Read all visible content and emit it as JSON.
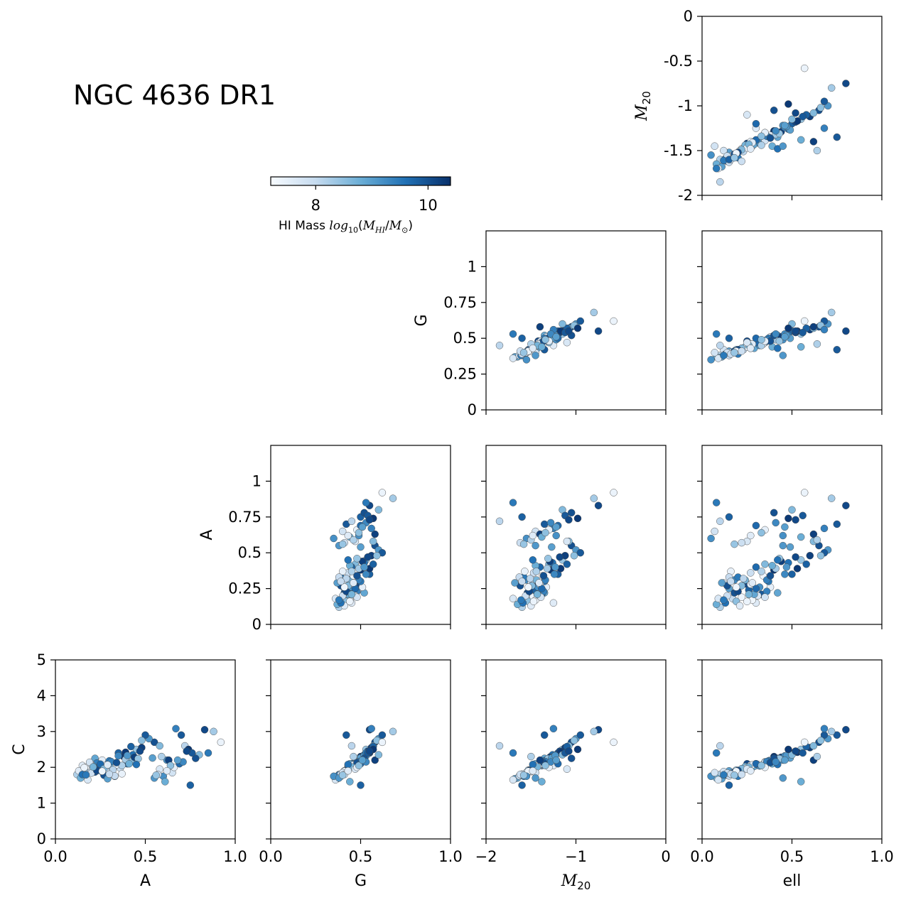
{
  "title": "NGC 4636 DR1",
  "colorbar": {
    "label": "HI Mass",
    "label_math": "log10(MHI/M⊙)",
    "ticks": [
      "8",
      "10"
    ],
    "tick_values": [
      8,
      10
    ],
    "range": [
      7.2,
      10.4
    ],
    "colors": [
      "#f7fbff",
      "#c6dbef",
      "#6baed6",
      "#2171b5",
      "#08306b"
    ]
  },
  "chart_data": {
    "type": "scatter",
    "variables": [
      "A",
      "G",
      "M20",
      "ell",
      "C"
    ],
    "axis_labels": {
      "A": "A",
      "G": "G",
      "M20": "M20",
      "ell": "ell",
      "C": "C"
    },
    "ranges": {
      "A": [
        0,
        1
      ],
      "G": [
        0,
        1
      ],
      "M20": [
        -2,
        0
      ],
      "ell": [
        0,
        1
      ],
      "C": [
        0,
        5
      ],
      "M20_row": [
        -2,
        0
      ],
      "G_row": [
        0,
        1.25
      ],
      "A_row": [
        0,
        1.25
      ]
    },
    "tick_labels": {
      "A_x": [
        "0.0",
        "0.5",
        "1.0"
      ],
      "G_x": [
        "0.0",
        "0.5",
        "1.0"
      ],
      "M20_x": [
        "−2",
        "−1",
        "0"
      ],
      "ell_x": [
        "0.0",
        "0.5",
        "1.0"
      ],
      "M20_y": [
        "0",
        "-0.5",
        "-1",
        "-1.5",
        "-2"
      ],
      "G_y": [
        "1",
        "0.75",
        "0.5",
        "0.25",
        "0"
      ],
      "A_y": [
        "1",
        "0.75",
        "0.5",
        "0.25",
        "0"
      ],
      "C_y": [
        "5",
        "4",
        "3",
        "2",
        "1",
        "0"
      ]
    },
    "panels": [
      {
        "x": "ell",
        "y": "M20"
      },
      {
        "x": "M20",
        "y": "G"
      },
      {
        "x": "ell",
        "y": "G"
      },
      {
        "x": "G",
        "y": "A"
      },
      {
        "x": "M20",
        "y": "A"
      },
      {
        "x": "ell",
        "y": "A"
      },
      {
        "x": "A",
        "y": "C"
      },
      {
        "x": "G",
        "y": "C"
      },
      {
        "x": "M20",
        "y": "C"
      },
      {
        "x": "ell",
        "y": "C"
      }
    ],
    "galaxies": [
      [
        0.15,
        0.45,
        -1.25,
        0.3,
        2.05,
        7.6
      ],
      [
        0.22,
        0.52,
        -1.35,
        0.42,
        2.25,
        8.9
      ],
      [
        0.31,
        0.4,
        -1.55,
        0.18,
        1.85,
        9.3
      ],
      [
        0.28,
        0.48,
        -1.42,
        0.25,
        2.1,
        10.1
      ],
      [
        0.12,
        0.38,
        -1.6,
        0.1,
        1.8,
        8.2
      ],
      [
        0.19,
        0.43,
        -1.48,
        0.22,
        1.95,
        7.4
      ],
      [
        0.35,
        0.55,
        -1.2,
        0.5,
        2.4,
        9.8
      ],
      [
        0.42,
        0.47,
        -1.3,
        0.35,
        2.15,
        8.6
      ],
      [
        0.25,
        0.41,
        -1.52,
        0.15,
        1.9,
        9.0
      ],
      [
        0.38,
        0.5,
        -1.28,
        0.4,
        2.3,
        10.3
      ],
      [
        0.17,
        0.44,
        -1.45,
        0.28,
        2.0,
        7.3
      ],
      [
        0.33,
        0.39,
        -1.58,
        0.2,
        1.75,
        9.5
      ],
      [
        0.45,
        0.53,
        -1.15,
        0.55,
        2.5,
        8.4
      ],
      [
        0.21,
        0.46,
        -1.38,
        0.33,
        2.05,
        9.9
      ],
      [
        0.29,
        0.42,
        -1.5,
        0.12,
        1.88,
        7.8
      ],
      [
        0.55,
        0.58,
        -1.05,
        0.65,
        2.7,
        10.0
      ],
      [
        0.62,
        0.49,
        -1.22,
        0.45,
        2.2,
        9.2
      ],
      [
        0.14,
        0.37,
        -1.65,
        0.08,
        1.7,
        8.8
      ],
      [
        0.26,
        0.51,
        -1.33,
        0.38,
        2.2,
        7.5
      ],
      [
        0.4,
        0.45,
        -1.4,
        0.3,
        2.1,
        9.7
      ],
      [
        0.18,
        0.4,
        -1.55,
        0.17,
        1.85,
        8.0
      ],
      [
        0.48,
        0.56,
        -1.12,
        0.6,
        2.55,
        10.2
      ],
      [
        0.36,
        0.43,
        -1.47,
        0.27,
        1.98,
        7.9
      ],
      [
        0.23,
        0.48,
        -1.36,
        0.36,
        2.12,
        9.4
      ],
      [
        0.31,
        0.44,
        -1.44,
        0.24,
        2.02,
        8.7
      ],
      [
        0.52,
        0.6,
        -1.0,
        0.7,
        2.8,
        9.1
      ],
      [
        0.27,
        0.39,
        -1.62,
        0.14,
        1.78,
        10.0
      ],
      [
        0.2,
        0.47,
        -1.41,
        0.31,
        2.08,
        7.7
      ],
      [
        0.43,
        0.52,
        -1.26,
        0.48,
        2.35,
        9.6
      ],
      [
        0.16,
        0.42,
        -1.53,
        0.19,
        1.92,
        8.5
      ],
      [
        0.34,
        0.46,
        -1.37,
        0.34,
        2.07,
        7.35
      ],
      [
        0.24,
        0.44,
        -1.46,
        0.26,
        2.0,
        9.8
      ],
      [
        0.39,
        0.49,
        -1.32,
        0.41,
        2.22,
        8.3
      ],
      [
        0.29,
        0.37,
        -1.68,
        0.11,
        1.68,
        9.0
      ],
      [
        0.13,
        0.41,
        -1.5,
        0.21,
        1.9,
        7.6
      ],
      [
        0.47,
        0.54,
        -1.18,
        0.52,
        2.45,
        10.1
      ],
      [
        0.21,
        0.43,
        -1.43,
        0.29,
        2.03,
        8.9
      ],
      [
        0.3,
        0.5,
        -1.35,
        0.37,
        2.18,
        9.5
      ],
      [
        0.37,
        0.4,
        -1.57,
        0.16,
        1.82,
        7.45
      ],
      [
        0.58,
        0.57,
        -1.08,
        0.62,
        2.6,
        8.6
      ],
      [
        0.26,
        0.45,
        -1.42,
        0.32,
        2.04,
        9.2
      ],
      [
        0.19,
        0.48,
        -1.39,
        0.35,
        2.14,
        7.8
      ],
      [
        0.44,
        0.51,
        -1.29,
        0.44,
        2.28,
        10.2
      ],
      [
        0.32,
        0.42,
        -1.51,
        0.23,
        1.93,
        8.1
      ],
      [
        0.15,
        0.39,
        -1.59,
        0.13,
        1.8,
        9.6
      ],
      [
        0.5,
        0.62,
        -0.95,
        0.68,
        2.9,
        9.9
      ],
      [
        0.28,
        0.46,
        -1.4,
        0.27,
        2.06,
        7.5
      ],
      [
        0.41,
        0.44,
        -1.45,
        0.39,
        2.1,
        8.8
      ],
      [
        0.22,
        0.41,
        -1.54,
        0.18,
        1.87,
        10.0
      ],
      [
        0.35,
        0.53,
        -1.24,
        0.46,
        2.32,
        9.3
      ],
      [
        0.18,
        0.36,
        -1.7,
        0.09,
        1.65,
        7.7
      ],
      [
        0.46,
        0.48,
        -1.31,
        0.43,
        2.24,
        8.4
      ],
      [
        0.25,
        0.47,
        -1.38,
        0.3,
        2.09,
        9.7
      ],
      [
        0.33,
        0.38,
        -1.63,
        0.15,
        1.76,
        8.0
      ],
      [
        0.39,
        0.55,
        -1.17,
        0.53,
        2.42,
        10.3
      ],
      [
        0.16,
        0.44,
        -1.47,
        0.25,
        1.99,
        7.4
      ],
      [
        0.54,
        0.5,
        -1.27,
        0.49,
        2.26,
        9.0
      ],
      [
        0.27,
        0.43,
        -1.49,
        0.22,
        1.96,
        8.6
      ],
      [
        0.42,
        0.57,
        -1.1,
        0.58,
        2.58,
        9.8
      ],
      [
        0.2,
        0.4,
        -1.56,
        0.14,
        1.84,
        7.9
      ],
      [
        0.31,
        0.49,
        -1.34,
        0.36,
        2.16,
        9.4
      ],
      [
        0.37,
        0.45,
        -1.44,
        0.33,
        2.05,
        8.2
      ],
      [
        0.23,
        0.42,
        -1.52,
        0.2,
        1.91,
        10.1
      ],
      [
        0.48,
        0.59,
        -1.02,
        0.66,
        2.75,
        8.5
      ],
      [
        0.29,
        0.46,
        -1.41,
        0.28,
        2.07,
        7.6
      ],
      [
        0.17,
        0.38,
        -1.61,
        0.12,
        1.79,
        9.5
      ],
      [
        0.4,
        0.52,
        -1.23,
        0.47,
        2.33,
        9.1
      ],
      [
        0.26,
        0.41,
        -1.53,
        0.19,
        1.89,
        7.35
      ],
      [
        0.34,
        0.48,
        -1.36,
        0.38,
        2.13,
        10.0
      ],
      [
        0.21,
        0.45,
        -1.43,
        0.26,
        2.01,
        8.7
      ],
      [
        0.45,
        0.43,
        -1.48,
        0.42,
        2.08,
        9.6
      ],
      [
        0.3,
        0.39,
        -1.6,
        0.16,
        1.81,
        8.0
      ],
      [
        0.6,
        0.35,
        -1.55,
        0.05,
        1.75,
        9.2
      ],
      [
        0.65,
        0.4,
        -1.45,
        0.07,
        1.85,
        7.8
      ],
      [
        0.7,
        0.42,
        -1.35,
        0.75,
        2.9,
        9.9
      ],
      [
        0.83,
        0.55,
        -0.75,
        0.8,
        3.05,
        10.1
      ],
      [
        0.92,
        0.62,
        -0.58,
        0.57,
        2.7,
        7.4
      ],
      [
        0.88,
        0.68,
        -0.8,
        0.72,
        3.0,
        8.3
      ],
      [
        0.85,
        0.53,
        -1.7,
        0.08,
        2.4,
        9.5
      ],
      [
        0.72,
        0.45,
        -1.85,
        0.1,
        2.6,
        8.1
      ],
      [
        0.75,
        0.5,
        -1.6,
        0.15,
        1.5,
        9.8
      ],
      [
        0.63,
        0.58,
        -1.4,
        0.62,
        2.2,
        10.2
      ],
      [
        0.58,
        0.47,
        -1.1,
        0.25,
        1.95,
        7.7
      ],
      [
        0.67,
        0.56,
        -1.25,
        0.68,
        3.08,
        9.4
      ],
      [
        0.8,
        0.6,
        -1.15,
        0.5,
        2.35,
        8.6
      ],
      [
        0.55,
        0.38,
        -1.45,
        0.45,
        1.7,
        9.1
      ],
      [
        0.66,
        0.48,
        -1.3,
        0.35,
        2.0,
        7.5
      ],
      [
        0.78,
        0.52,
        -1.05,
        0.4,
        2.25,
        10.0
      ],
      [
        0.61,
        0.44,
        -1.38,
        0.55,
        1.6,
        8.8
      ],
      [
        0.69,
        0.5,
        -1.2,
        0.3,
        2.1,
        9.7
      ],
      [
        0.59,
        0.46,
        -1.5,
        0.64,
        2.3,
        8.2
      ],
      [
        0.74,
        0.57,
        -0.98,
        0.48,
        2.5,
        10.3
      ],
      [
        0.57,
        0.41,
        -1.62,
        0.22,
        1.8,
        7.9
      ],
      [
        0.71,
        0.53,
        -1.28,
        0.41,
        2.15,
        9.3
      ],
      [
        0.64,
        0.49,
        -1.34,
        0.33,
        2.05,
        8.5
      ],
      [
        0.76,
        0.54,
        -1.12,
        0.56,
        2.4,
        9.9
      ],
      [
        0.62,
        0.43,
        -1.48,
        0.27,
        1.9,
        7.6
      ],
      [
        0.68,
        0.51,
        -1.22,
        0.46,
        2.2,
        9.0
      ],
      [
        0.73,
        0.55,
        -1.08,
        0.52,
        2.45,
        10.1
      ],
      [
        0.56,
        0.4,
        -1.58,
        0.18,
        1.78,
        8.4
      ]
    ]
  }
}
